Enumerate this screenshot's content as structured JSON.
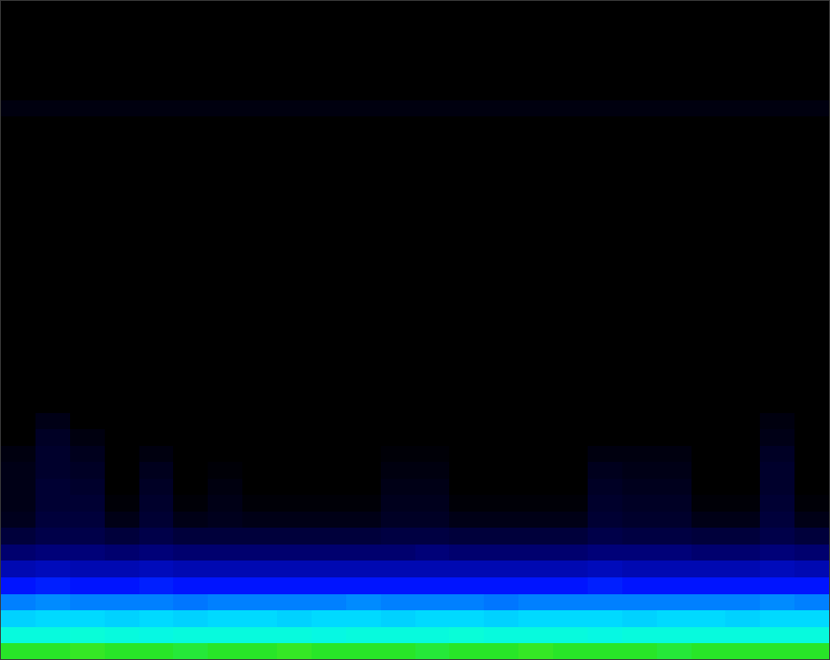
{
  "chart_data": {
    "type": "heatmap",
    "xlim": [
      0,
      24
    ],
    "ylim": [
      0,
      40
    ],
    "zlim": [
      0,
      100
    ],
    "tick_labels": false,
    "cells": [
      [
        70,
        70,
        71,
        70,
        70,
        69,
        70,
        70,
        71,
        70,
        70,
        70,
        69,
        70,
        70,
        71,
        70,
        70,
        70,
        69,
        70,
        70,
        70,
        70
      ],
      [
        58,
        58,
        59,
        58,
        57,
        58,
        58,
        58,
        58,
        57,
        58,
        58,
        58,
        59,
        58,
        58,
        58,
        57,
        58,
        58,
        58,
        58,
        58,
        58
      ],
      [
        49,
        50,
        50,
        49,
        50,
        49,
        50,
        50,
        49,
        50,
        50,
        49,
        50,
        50,
        49,
        50,
        50,
        50,
        49,
        50,
        50,
        49,
        50,
        50
      ],
      [
        40,
        41,
        40,
        40,
        40,
        39,
        40,
        40,
        40,
        40,
        41,
        40,
        40,
        40,
        39,
        40,
        40,
        40,
        40,
        40,
        40,
        40,
        41,
        40
      ],
      [
        30,
        31,
        30,
        30,
        31,
        30,
        30,
        30,
        30,
        30,
        30,
        30,
        30,
        30,
        30,
        30,
        30,
        31,
        30,
        30,
        30,
        30,
        30,
        30
      ],
      [
        22,
        23,
        22,
        22,
        23,
        22,
        22,
        22,
        22,
        22,
        22,
        22,
        22,
        22,
        22,
        22,
        22,
        23,
        22,
        22,
        22,
        22,
        23,
        22
      ],
      [
        15,
        16,
        16,
        15,
        16,
        15,
        15,
        15,
        15,
        15,
        15,
        15,
        16,
        15,
        15,
        15,
        15,
        16,
        16,
        16,
        15,
        15,
        16,
        15
      ],
      [
        8,
        10,
        10,
        8,
        10,
        8,
        8,
        8,
        8,
        8,
        8,
        9,
        9,
        8,
        8,
        8,
        8,
        10,
        9,
        9,
        8,
        8,
        10,
        8
      ],
      [
        4,
        8,
        8,
        3,
        7,
        3,
        4,
        3,
        3,
        3,
        3,
        5,
        5,
        3,
        3,
        3,
        3,
        7,
        6,
        6,
        3,
        3,
        8,
        3
      ],
      [
        3,
        7,
        7,
        1,
        6,
        1,
        3,
        1,
        1,
        1,
        1,
        4,
        4,
        1,
        1,
        1,
        1,
        6,
        5,
        5,
        1,
        1,
        7,
        1
      ],
      [
        3,
        7,
        6,
        0,
        5,
        0,
        2,
        0,
        0,
        0,
        0,
        3,
        3,
        0,
        0,
        0,
        0,
        5,
        4,
        4,
        0,
        0,
        6,
        0
      ],
      [
        3,
        6,
        5,
        0,
        4,
        0,
        1,
        0,
        0,
        0,
        0,
        2,
        2,
        0,
        0,
        0,
        0,
        4,
        3,
        3,
        0,
        0,
        6,
        0
      ],
      [
        2,
        6,
        4,
        0,
        2,
        0,
        0,
        0,
        0,
        0,
        0,
        1,
        1,
        0,
        0,
        0,
        0,
        2,
        2,
        2,
        0,
        0,
        5,
        0
      ],
      [
        0,
        5,
        2,
        0,
        0,
        0,
        0,
        0,
        0,
        0,
        0,
        0,
        0,
        0,
        0,
        0,
        0,
        0,
        0,
        0,
        0,
        0,
        3,
        0
      ],
      [
        0,
        3,
        0,
        0,
        0,
        0,
        0,
        0,
        0,
        0,
        0,
        0,
        0,
        0,
        0,
        0,
        0,
        0,
        0,
        0,
        0,
        0,
        2,
        0
      ],
      [
        0,
        0,
        0,
        0,
        0,
        0,
        0,
        0,
        0,
        0,
        0,
        0,
        0,
        0,
        0,
        0,
        0,
        0,
        0,
        0,
        0,
        0,
        0,
        0
      ],
      [
        0,
        0,
        0,
        0,
        0,
        0,
        0,
        0,
        0,
        0,
        0,
        0,
        0,
        0,
        0,
        0,
        0,
        0,
        0,
        0,
        0,
        0,
        0,
        0
      ],
      [
        0,
        0,
        0,
        0,
        0,
        0,
        0,
        0,
        0,
        0,
        0,
        0,
        0,
        0,
        0,
        0,
        0,
        0,
        0,
        0,
        0,
        0,
        0,
        0
      ],
      [
        0,
        0,
        0,
        0,
        0,
        0,
        0,
        0,
        0,
        0,
        0,
        0,
        0,
        0,
        0,
        0,
        0,
        0,
        0,
        0,
        0,
        0,
        0,
        0
      ],
      [
        0,
        0,
        0,
        0,
        0,
        0,
        0,
        0,
        0,
        0,
        0,
        0,
        0,
        0,
        0,
        0,
        0,
        0,
        0,
        0,
        0,
        0,
        0,
        0
      ],
      [
        0,
        0,
        0,
        0,
        0,
        0,
        0,
        0,
        0,
        0,
        0,
        0,
        0,
        0,
        0,
        0,
        0,
        0,
        0,
        0,
        0,
        0,
        0,
        0
      ],
      [
        0,
        0,
        0,
        0,
        0,
        0,
        0,
        0,
        0,
        0,
        0,
        0,
        0,
        0,
        0,
        0,
        0,
        0,
        0,
        0,
        0,
        0,
        0,
        0
      ],
      [
        0,
        0,
        0,
        0,
        0,
        0,
        0,
        0,
        0,
        0,
        0,
        0,
        0,
        0,
        0,
        0,
        0,
        0,
        0,
        0,
        0,
        0,
        0,
        0
      ],
      [
        0,
        0,
        0,
        0,
        0,
        0,
        0,
        0,
        0,
        0,
        0,
        0,
        0,
        0,
        0,
        0,
        0,
        0,
        0,
        0,
        0,
        0,
        0,
        0
      ],
      [
        0,
        0,
        0,
        0,
        0,
        0,
        0,
        0,
        0,
        0,
        0,
        0,
        0,
        0,
        0,
        0,
        0,
        0,
        0,
        0,
        0,
        0,
        0,
        0
      ],
      [
        0,
        0,
        0,
        0,
        0,
        0,
        0,
        0,
        0,
        0,
        0,
        0,
        0,
        0,
        0,
        0,
        0,
        0,
        0,
        0,
        0,
        0,
        0,
        0
      ],
      [
        0,
        0,
        0,
        0,
        0,
        0,
        0,
        0,
        0,
        0,
        0,
        0,
        0,
        0,
        0,
        0,
        0,
        0,
        0,
        0,
        0,
        0,
        0,
        0
      ],
      [
        0,
        0,
        0,
        0,
        0,
        0,
        0,
        0,
        0,
        0,
        0,
        0,
        0,
        0,
        0,
        0,
        0,
        0,
        0,
        0,
        0,
        0,
        0,
        0
      ],
      [
        0,
        0,
        0,
        0,
        0,
        0,
        0,
        0,
        0,
        0,
        0,
        0,
        0,
        0,
        0,
        0,
        0,
        0,
        0,
        0,
        0,
        0,
        0,
        0
      ],
      [
        0,
        0,
        0,
        0,
        0,
        0,
        0,
        0,
        0,
        0,
        0,
        0,
        0,
        0,
        0,
        0,
        0,
        0,
        0,
        0,
        0,
        0,
        0,
        0
      ],
      [
        0,
        0,
        0,
        0,
        0,
        0,
        0,
        0,
        0,
        0,
        0,
        0,
        0,
        0,
        0,
        0,
        0,
        0,
        0,
        0,
        0,
        0,
        0,
        0
      ],
      [
        0,
        0,
        0,
        0,
        0,
        0,
        0,
        0,
        0,
        0,
        0,
        0,
        0,
        0,
        0,
        0,
        0,
        0,
        0,
        0,
        0,
        0,
        0,
        0
      ],
      [
        0,
        0,
        0,
        0,
        0,
        0,
        0,
        0,
        0,
        0,
        0,
        0,
        0,
        0,
        0,
        0,
        0,
        0,
        0,
        0,
        0,
        0,
        0,
        0
      ],
      [
        2,
        2,
        2,
        2,
        2,
        2,
        2,
        2,
        2,
        2,
        2,
        2,
        2,
        2,
        2,
        2,
        2,
        2,
        2,
        2,
        2,
        2,
        2,
        2
      ],
      [
        0,
        0,
        0,
        0,
        0,
        0,
        0,
        0,
        0,
        0,
        0,
        0,
        0,
        0,
        0,
        0,
        0,
        0,
        0,
        0,
        0,
        0,
        0,
        0
      ],
      [
        0,
        0,
        0,
        0,
        0,
        0,
        0,
        0,
        0,
        0,
        0,
        0,
        0,
        0,
        0,
        0,
        0,
        0,
        0,
        0,
        0,
        0,
        0,
        0
      ],
      [
        0,
        0,
        0,
        0,
        0,
        0,
        0,
        0,
        0,
        0,
        0,
        0,
        0,
        0,
        0,
        0,
        0,
        0,
        0,
        0,
        0,
        0,
        0,
        0
      ],
      [
        0,
        0,
        0,
        0,
        0,
        0,
        0,
        0,
        0,
        0,
        0,
        0,
        0,
        0,
        0,
        0,
        0,
        0,
        0,
        0,
        0,
        0,
        0,
        0
      ],
      [
        0,
        0,
        0,
        0,
        0,
        0,
        0,
        0,
        0,
        0,
        0,
        0,
        0,
        0,
        0,
        0,
        0,
        0,
        0,
        0,
        0,
        0,
        0,
        0
      ],
      [
        0,
        0,
        0,
        0,
        0,
        0,
        0,
        0,
        0,
        0,
        0,
        0,
        0,
        0,
        0,
        0,
        0,
        0,
        0,
        0,
        0,
        0,
        0,
        0
      ]
    ]
  }
}
